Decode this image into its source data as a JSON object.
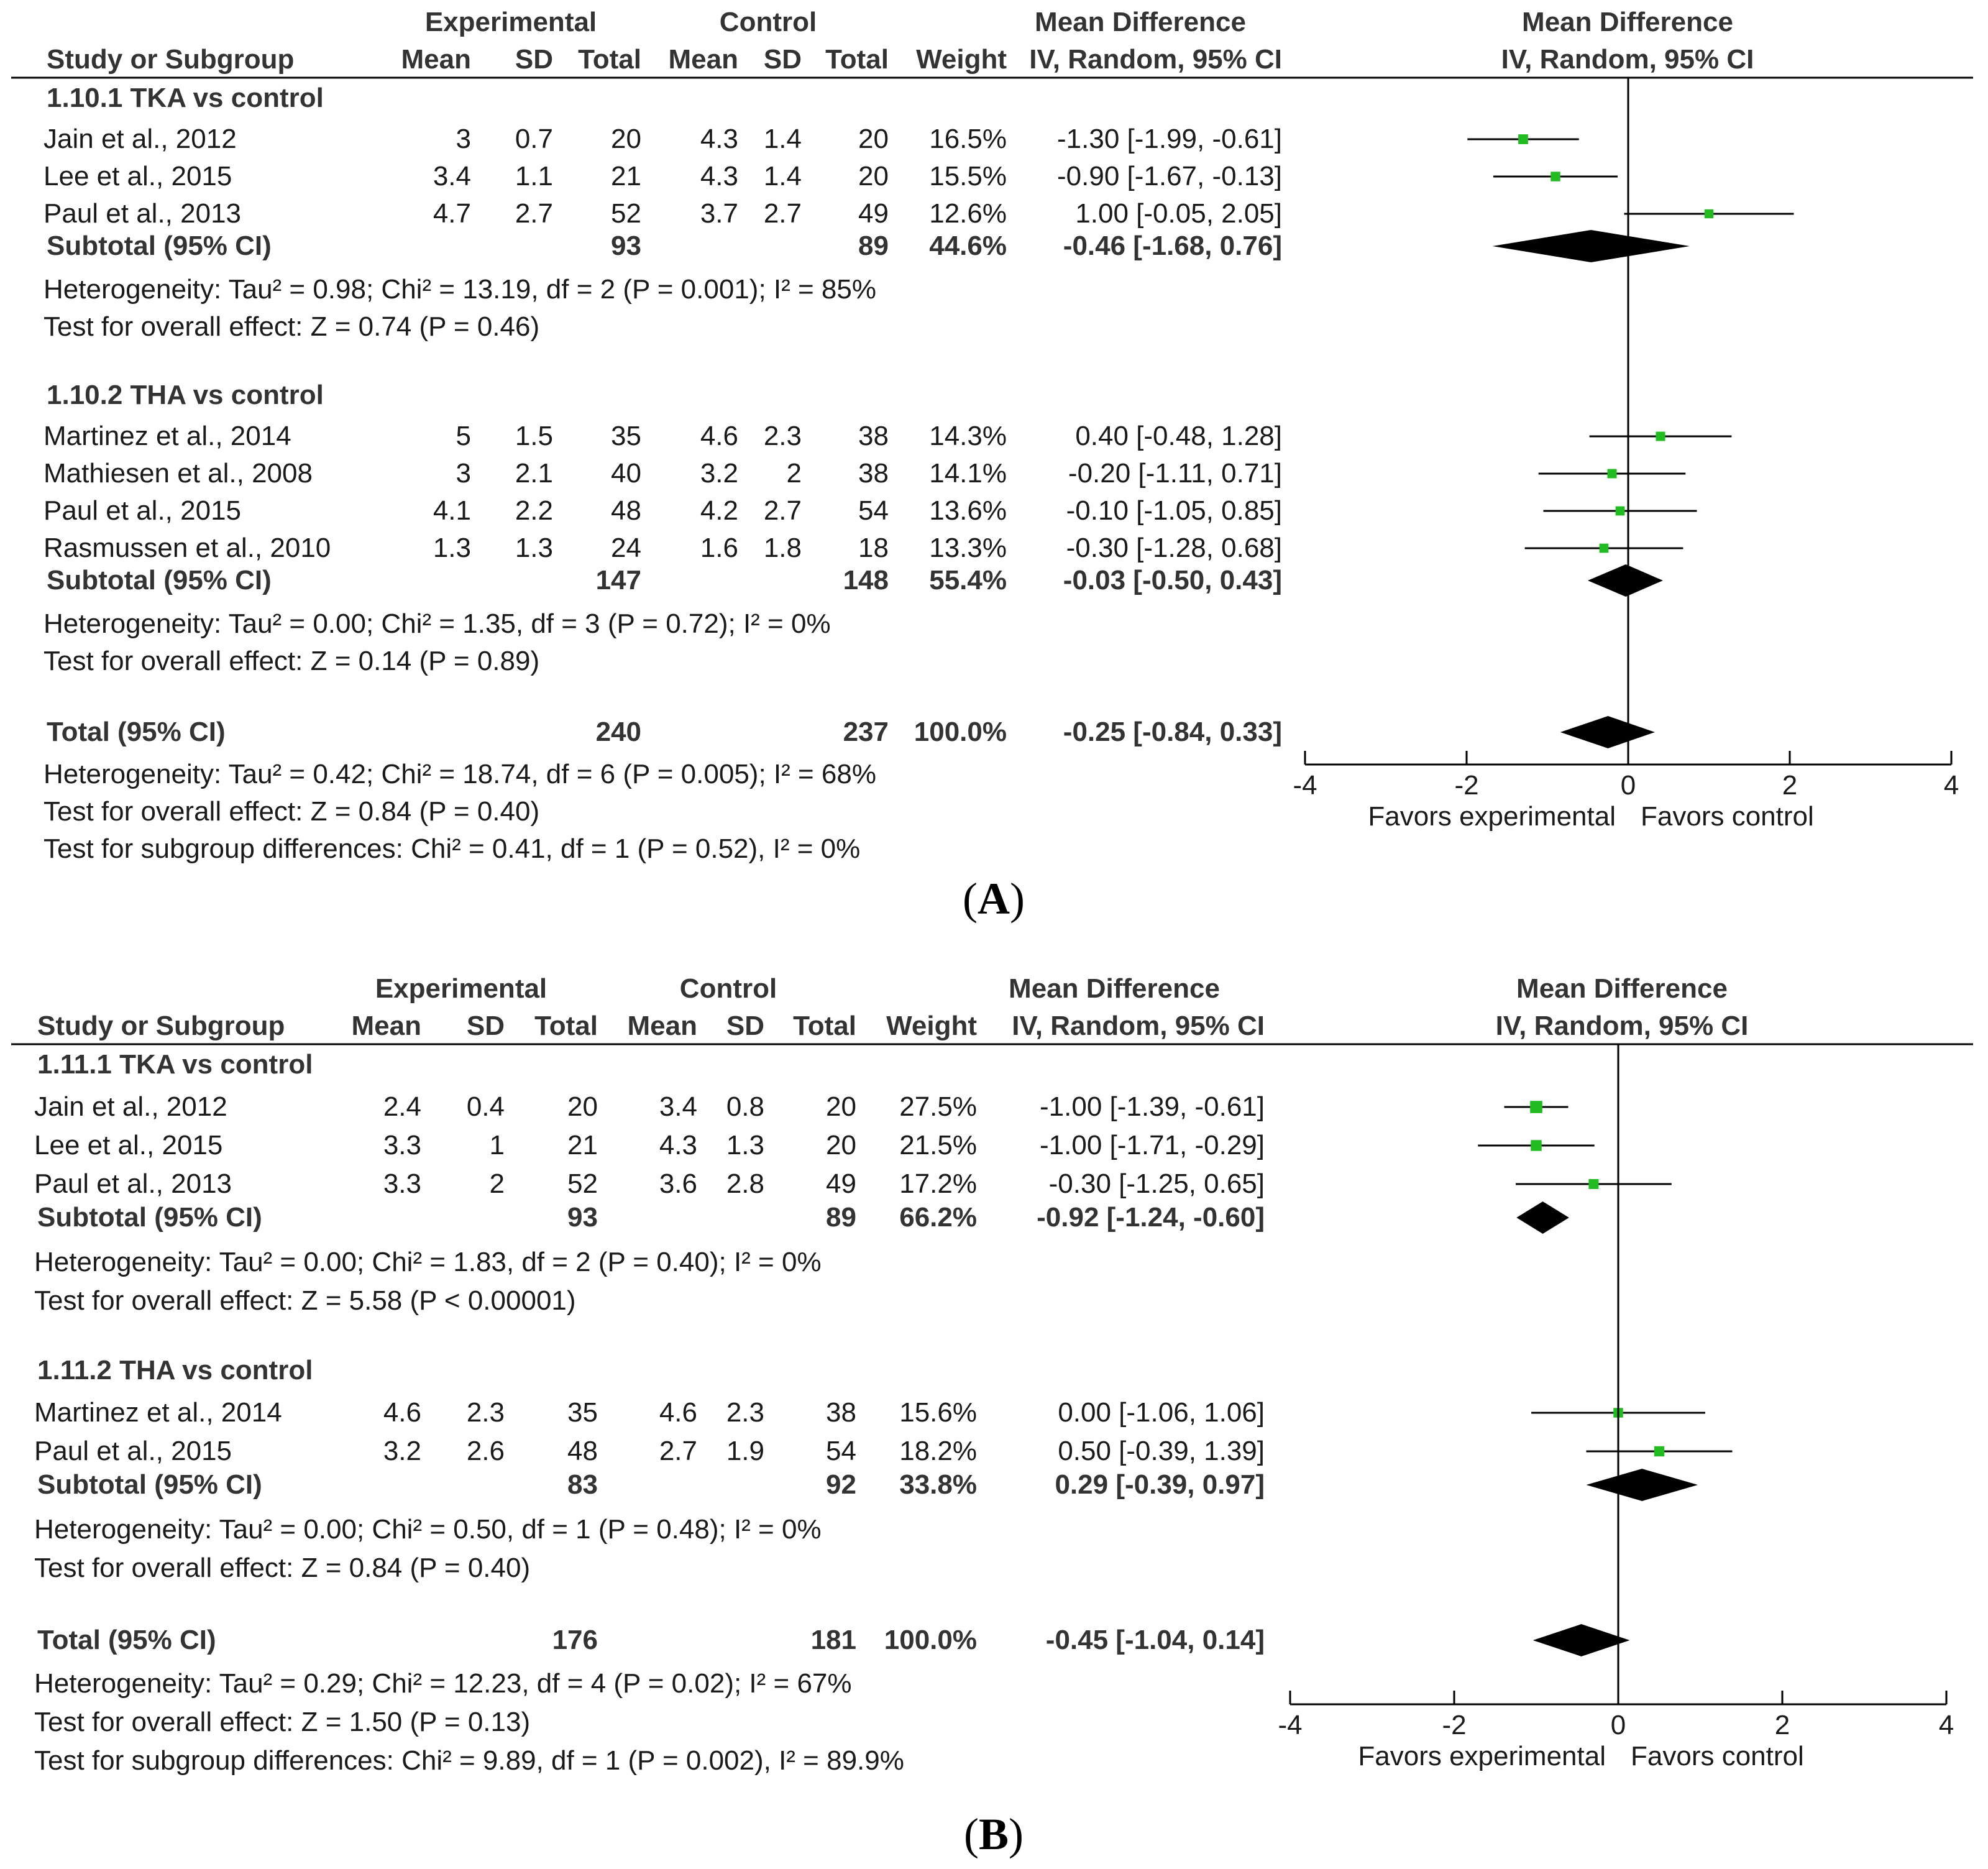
{
  "colors": {
    "marker": "#22bb22",
    "diamond": "#000000",
    "rule": "#000000",
    "text": "#1a1a1a"
  },
  "headers": {
    "experimental": "Experimental",
    "control": "Control",
    "mean_difference": "Mean Difference",
    "study_or_subgroup": "Study or Subgroup",
    "mean": "Mean",
    "sd": "SD",
    "total": "Total",
    "weight": "Weight",
    "method": "IV, Random, 95% CI"
  },
  "chart_data": [
    {
      "type": "forest",
      "panel": "A",
      "x_axis": {
        "range": [
          -4,
          4
        ],
        "ticks": [
          -4,
          -2,
          0,
          2,
          4
        ],
        "ticklabels": [
          "-4",
          "-2",
          "0",
          "2",
          "4"
        ],
        "left_label": "Favors experimental",
        "right_label": "Favors control"
      },
      "subgroups": [
        {
          "title": "1.10.1 TKA vs control",
          "studies": [
            {
              "name": "Jain et al., 2012",
              "e_mean": "3",
              "e_sd": "0.7",
              "e_total": "20",
              "c_mean": "4.3",
              "c_sd": "1.4",
              "c_total": "20",
              "weight": "16.5%",
              "ci_text": "-1.30 [-1.99, -0.61]",
              "md": -1.3,
              "lo": -1.99,
              "hi": -0.61,
              "w": 16.5
            },
            {
              "name": "Lee et al., 2015",
              "e_mean": "3.4",
              "e_sd": "1.1",
              "e_total": "21",
              "c_mean": "4.3",
              "c_sd": "1.4",
              "c_total": "20",
              "weight": "15.5%",
              "ci_text": "-0.90 [-1.67, -0.13]",
              "md": -0.9,
              "lo": -1.67,
              "hi": -0.13,
              "w": 15.5
            },
            {
              "name": "Paul et al., 2013",
              "e_mean": "4.7",
              "e_sd": "2.7",
              "e_total": "52",
              "c_mean": "3.7",
              "c_sd": "2.7",
              "c_total": "49",
              "weight": "12.6%",
              "ci_text": "1.00 [-0.05, 2.05]",
              "md": 1.0,
              "lo": -0.05,
              "hi": 2.05,
              "w": 12.6
            }
          ],
          "subtotal": {
            "label": "Subtotal (95% CI)",
            "e_total": "93",
            "c_total": "89",
            "weight": "44.6%",
            "ci_text": "-0.46 [-1.68, 0.76]",
            "md": -0.46,
            "lo": -1.68,
            "hi": 0.76
          },
          "heterogeneity": "Heterogeneity: Tau² = 0.98; Chi² = 13.19, df = 2 (P = 0.001); I² = 85%",
          "overall": "Test for overall effect: Z = 0.74 (P = 0.46)"
        },
        {
          "title": "1.10.2 THA vs control",
          "studies": [
            {
              "name": "Martinez et al., 2014",
              "e_mean": "5",
              "e_sd": "1.5",
              "e_total": "35",
              "c_mean": "4.6",
              "c_sd": "2.3",
              "c_total": "38",
              "weight": "14.3%",
              "ci_text": "0.40 [-0.48, 1.28]",
              "md": 0.4,
              "lo": -0.48,
              "hi": 1.28,
              "w": 14.3
            },
            {
              "name": "Mathiesen et al., 2008",
              "e_mean": "3",
              "e_sd": "2.1",
              "e_total": "40",
              "c_mean": "3.2",
              "c_sd": "2",
              "c_total": "38",
              "weight": "14.1%",
              "ci_text": "-0.20 [-1.11, 0.71]",
              "md": -0.2,
              "lo": -1.11,
              "hi": 0.71,
              "w": 14.1
            },
            {
              "name": "Paul et al., 2015",
              "e_mean": "4.1",
              "e_sd": "2.2",
              "e_total": "48",
              "c_mean": "4.2",
              "c_sd": "2.7",
              "c_total": "54",
              "weight": "13.6%",
              "ci_text": "-0.10 [-1.05, 0.85]",
              "md": -0.1,
              "lo": -1.05,
              "hi": 0.85,
              "w": 13.6
            },
            {
              "name": "Rasmussen et al., 2010",
              "e_mean": "1.3",
              "e_sd": "1.3",
              "e_total": "24",
              "c_mean": "1.6",
              "c_sd": "1.8",
              "c_total": "18",
              "weight": "13.3%",
              "ci_text": "-0.30 [-1.28, 0.68]",
              "md": -0.3,
              "lo": -1.28,
              "hi": 0.68,
              "w": 13.3
            }
          ],
          "subtotal": {
            "label": "Subtotal (95% CI)",
            "e_total": "147",
            "c_total": "148",
            "weight": "55.4%",
            "ci_text": "-0.03 [-0.50, 0.43]",
            "md": -0.03,
            "lo": -0.5,
            "hi": 0.43
          },
          "heterogeneity": "Heterogeneity: Tau² = 0.00; Chi² = 1.35, df = 3 (P = 0.72); I² = 0%",
          "overall": "Test for overall effect: Z = 0.14 (P = 0.89)"
        }
      ],
      "total": {
        "label": "Total (95% CI)",
        "e_total": "240",
        "c_total": "237",
        "weight": "100.0%",
        "ci_text": "-0.25 [-0.84, 0.33]",
        "md": -0.25,
        "lo": -0.84,
        "hi": 0.33
      },
      "footer": [
        "Heterogeneity: Tau² = 0.42; Chi² = 18.74, df = 6 (P = 0.005); I² = 68%",
        "Test for overall effect: Z = 0.84 (P = 0.40)",
        "Test for subgroup differences: Chi² = 0.41, df = 1 (P = 0.52), I² = 0%"
      ]
    },
    {
      "type": "forest",
      "panel": "B",
      "x_axis": {
        "range": [
          -4,
          4
        ],
        "ticks": [
          -4,
          -2,
          0,
          2,
          4
        ],
        "ticklabels": [
          "-4",
          "-2",
          "0",
          "2",
          "4"
        ],
        "left_label": "Favors experimental",
        "right_label": "Favors control"
      },
      "subgroups": [
        {
          "title": "1.11.1 TKA vs control",
          "studies": [
            {
              "name": "Jain et al., 2012",
              "e_mean": "2.4",
              "e_sd": "0.4",
              "e_total": "20",
              "c_mean": "3.4",
              "c_sd": "0.8",
              "c_total": "20",
              "weight": "27.5%",
              "ci_text": "-1.00 [-1.39, -0.61]",
              "md": -1.0,
              "lo": -1.39,
              "hi": -0.61,
              "w": 27.5
            },
            {
              "name": "Lee et al., 2015",
              "e_mean": "3.3",
              "e_sd": "1",
              "e_total": "21",
              "c_mean": "4.3",
              "c_sd": "1.3",
              "c_total": "20",
              "weight": "21.5%",
              "ci_text": "-1.00 [-1.71, -0.29]",
              "md": -1.0,
              "lo": -1.71,
              "hi": -0.29,
              "w": 21.5
            },
            {
              "name": "Paul et al., 2013",
              "e_mean": "3.3",
              "e_sd": "2",
              "e_total": "52",
              "c_mean": "3.6",
              "c_sd": "2.8",
              "c_total": "49",
              "weight": "17.2%",
              "ci_text": "-0.30 [-1.25, 0.65]",
              "md": -0.3,
              "lo": -1.25,
              "hi": 0.65,
              "w": 17.2
            }
          ],
          "subtotal": {
            "label": "Subtotal (95% CI)",
            "e_total": "93",
            "c_total": "89",
            "weight": "66.2%",
            "ci_text": "-0.92 [-1.24, -0.60]",
            "md": -0.92,
            "lo": -1.24,
            "hi": -0.6
          },
          "heterogeneity": "Heterogeneity: Tau² = 0.00; Chi² = 1.83, df = 2 (P = 0.40); I² = 0%",
          "overall": "Test for overall effect: Z = 5.58 (P < 0.00001)"
        },
        {
          "title": "1.11.2 THA vs control",
          "studies": [
            {
              "name": "Martinez et al., 2014",
              "e_mean": "4.6",
              "e_sd": "2.3",
              "e_total": "35",
              "c_mean": "4.6",
              "c_sd": "2.3",
              "c_total": "38",
              "weight": "15.6%",
              "ci_text": "0.00 [-1.06, 1.06]",
              "md": 0.0,
              "lo": -1.06,
              "hi": 1.06,
              "w": 15.6
            },
            {
              "name": "Paul et al., 2015",
              "e_mean": "3.2",
              "e_sd": "2.6",
              "e_total": "48",
              "c_mean": "2.7",
              "c_sd": "1.9",
              "c_total": "54",
              "weight": "18.2%",
              "ci_text": "0.50 [-0.39, 1.39]",
              "md": 0.5,
              "lo": -0.39,
              "hi": 1.39,
              "w": 18.2
            }
          ],
          "subtotal": {
            "label": "Subtotal (95% CI)",
            "e_total": "83",
            "c_total": "92",
            "weight": "33.8%",
            "ci_text": "0.29 [-0.39, 0.97]",
            "md": 0.29,
            "lo": -0.39,
            "hi": 0.97
          },
          "heterogeneity": "Heterogeneity: Tau² = 0.00; Chi² = 0.50, df = 1 (P = 0.48); I² = 0%",
          "overall": "Test for overall effect: Z = 0.84 (P = 0.40)"
        }
      ],
      "total": {
        "label": "Total (95% CI)",
        "e_total": "176",
        "c_total": "181",
        "weight": "100.0%",
        "ci_text": "-0.45 [-1.04, 0.14]",
        "md": -0.45,
        "lo": -1.04,
        "hi": 0.14
      },
      "footer": [
        "Heterogeneity: Tau² = 0.29; Chi² = 12.23, df = 4 (P = 0.02); I² = 67%",
        "Test for overall effect: Z = 1.50 (P = 0.13)",
        "Test for subgroup differences: Chi² = 9.89, df = 1 (P = 0.002), I² = 89.9%"
      ]
    }
  ]
}
